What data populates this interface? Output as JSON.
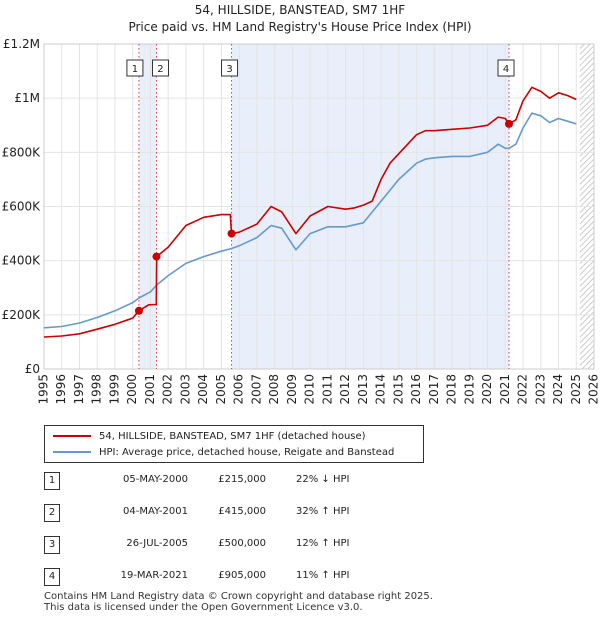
{
  "chart_data": {
    "type": "line",
    "title": "54, HILLSIDE, BANSTEAD, SM7 1HF",
    "subtitle": "Price paid vs. HM Land Registry's House Price Index (HPI)",
    "xlim": [
      1995,
      2026
    ],
    "ylim": [
      0,
      1200000
    ],
    "x_ticks": [
      1995,
      1996,
      1997,
      1998,
      1999,
      2000,
      2001,
      2002,
      2003,
      2004,
      2005,
      2006,
      2007,
      2008,
      2009,
      2010,
      2011,
      2012,
      2013,
      2014,
      2015,
      2016,
      2017,
      2018,
      2019,
      2020,
      2021,
      2022,
      2023,
      2024,
      2025,
      2026
    ],
    "y_ticks": [
      {
        "value": 0,
        "label": "£0"
      },
      {
        "value": 200000,
        "label": "£200K"
      },
      {
        "value": 400000,
        "label": "£400K"
      },
      {
        "value": 600000,
        "label": "£600K"
      },
      {
        "value": 800000,
        "label": "£800K"
      },
      {
        "value": 1000000,
        "label": "£1M"
      },
      {
        "value": 1200000,
        "label": "£1.2M"
      }
    ],
    "series": [
      {
        "name": "54, HILLSIDE, BANSTEAD, SM7 1HF (detached house)",
        "color": "#cc0000",
        "points": [
          [
            1995,
            118000
          ],
          [
            1996,
            122000
          ],
          [
            1997,
            130000
          ],
          [
            1998,
            147000
          ],
          [
            1999,
            165000
          ],
          [
            2000,
            188000
          ],
          [
            2000.35,
            215000
          ],
          [
            2000.9,
            237000
          ],
          [
            2001.33,
            238000
          ],
          [
            2001.35,
            415000
          ],
          [
            2002,
            450000
          ],
          [
            2002.5,
            490000
          ],
          [
            2003,
            530000
          ],
          [
            2004,
            560000
          ],
          [
            2005,
            570000
          ],
          [
            2005.5,
            570000
          ],
          [
            2005.57,
            500000
          ],
          [
            2006,
            505000
          ],
          [
            2007,
            535000
          ],
          [
            2007.8,
            600000
          ],
          [
            2008.4,
            580000
          ],
          [
            2009.2,
            500000
          ],
          [
            2010,
            565000
          ],
          [
            2011,
            600000
          ],
          [
            2012,
            590000
          ],
          [
            2012.5,
            595000
          ],
          [
            2013,
            605000
          ],
          [
            2013.5,
            620000
          ],
          [
            2014,
            700000
          ],
          [
            2014.5,
            760000
          ],
          [
            2015,
            795000
          ],
          [
            2016,
            865000
          ],
          [
            2016.5,
            880000
          ],
          [
            2017,
            880000
          ],
          [
            2018,
            885000
          ],
          [
            2019,
            890000
          ],
          [
            2020,
            900000
          ],
          [
            2020.6,
            930000
          ],
          [
            2021,
            925000
          ],
          [
            2021.21,
            905000
          ],
          [
            2021.6,
            920000
          ],
          [
            2022,
            990000
          ],
          [
            2022.5,
            1040000
          ],
          [
            2023,
            1025000
          ],
          [
            2023.5,
            1000000
          ],
          [
            2024,
            1020000
          ],
          [
            2024.5,
            1010000
          ],
          [
            2025,
            995000
          ]
        ]
      },
      {
        "name": "HPI: Average price, detached house, Reigate and Banstead",
        "color": "#6699cc",
        "points": [
          [
            1995,
            152000
          ],
          [
            1996,
            157000
          ],
          [
            1997,
            170000
          ],
          [
            1998,
            190000
          ],
          [
            1999,
            215000
          ],
          [
            2000,
            245000
          ],
          [
            2000.35,
            262000
          ],
          [
            2001,
            285000
          ],
          [
            2001.35,
            310000
          ],
          [
            2002,
            345000
          ],
          [
            2003,
            390000
          ],
          [
            2004,
            415000
          ],
          [
            2005,
            435000
          ],
          [
            2005.57,
            445000
          ],
          [
            2006,
            455000
          ],
          [
            2007,
            485000
          ],
          [
            2007.8,
            530000
          ],
          [
            2008.4,
            520000
          ],
          [
            2009.2,
            440000
          ],
          [
            2010,
            500000
          ],
          [
            2011,
            525000
          ],
          [
            2012,
            525000
          ],
          [
            2013,
            540000
          ],
          [
            2014,
            620000
          ],
          [
            2014.5,
            660000
          ],
          [
            2015,
            700000
          ],
          [
            2016,
            760000
          ],
          [
            2016.5,
            775000
          ],
          [
            2017,
            780000
          ],
          [
            2018,
            785000
          ],
          [
            2019,
            785000
          ],
          [
            2020,
            800000
          ],
          [
            2020.6,
            830000
          ],
          [
            2021,
            815000
          ],
          [
            2021.21,
            815000
          ],
          [
            2021.6,
            830000
          ],
          [
            2022,
            890000
          ],
          [
            2022.5,
            945000
          ],
          [
            2023,
            935000
          ],
          [
            2023.5,
            910000
          ],
          [
            2024,
            925000
          ],
          [
            2024.5,
            915000
          ],
          [
            2025,
            905000
          ]
        ]
      }
    ],
    "sales": [
      {
        "label": "1",
        "x": 2000.35,
        "y": 215000
      },
      {
        "label": "2",
        "x": 2001.34,
        "y": 415000
      },
      {
        "label": "3",
        "x": 2005.57,
        "y": 500000
      },
      {
        "label": "4",
        "x": 2021.21,
        "y": 905000
      }
    ],
    "shaded_periods": [
      [
        2000.35,
        2001.34
      ],
      [
        2005.57,
        2021.21
      ]
    ],
    "hatched_from": 2025.2
  },
  "legend": {
    "property_label": "54, HILLSIDE, BANSTEAD, SM7 1HF (detached house)",
    "hpi_label": "HPI: Average price, detached house, Reigate and Banstead"
  },
  "transactions": [
    {
      "num": "1",
      "date": "05-MAY-2000",
      "price": "£215,000",
      "hpi": "22% ↓ HPI"
    },
    {
      "num": "2",
      "date": "04-MAY-2001",
      "price": "£415,000",
      "hpi": "32% ↑ HPI"
    },
    {
      "num": "3",
      "date": "26-JUL-2005",
      "price": "£500,000",
      "hpi": "12% ↑ HPI"
    },
    {
      "num": "4",
      "date": "19-MAR-2021",
      "price": "£905,000",
      "hpi": "11% ↑ HPI"
    }
  ],
  "footer": {
    "line1": "Contains HM Land Registry data © Crown copyright and database right 2025.",
    "line2": "This data is licensed under the Open Government Licence v3.0."
  }
}
